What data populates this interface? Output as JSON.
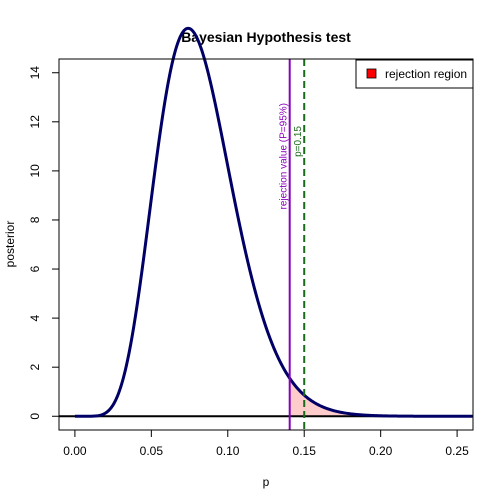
{
  "chart_data": {
    "type": "line",
    "title": "Bayesian Hypothesis test",
    "xlabel": "p",
    "ylabel": "posterior",
    "xlim": [
      -0.0104,
      0.2604
    ],
    "ylim": [
      -0.56,
      14.56
    ],
    "x_ticks": [
      0.0,
      0.05,
      0.1,
      0.15,
      0.2,
      0.25
    ],
    "x_tick_labels": [
      "0.00",
      "0.05",
      "0.10",
      "0.15",
      "0.20",
      "0.25"
    ],
    "y_ticks": [
      0,
      2,
      4,
      6,
      8,
      10,
      12,
      14
    ],
    "y_tick_labels": [
      "0",
      "2",
      "4",
      "6",
      "8",
      "10",
      "12",
      "14"
    ],
    "series": [
      {
        "color": "#000066",
        "distribution": "Beta",
        "alpha": 9,
        "beta": 101,
        "x_range": [
          0.0,
          0.26
        ],
        "peak": {
          "x": 0.074,
          "y": 13.45
        }
      }
    ],
    "vlines": [
      {
        "x": 0.1405,
        "label": "rejection value (P=95%)",
        "color": "#8800bb",
        "style": "solid"
      },
      {
        "x": 0.15,
        "label": "p=0.15",
        "color": "#1a6b1a",
        "style": "dashed"
      }
    ],
    "hline": {
      "y": 0,
      "color": "#000000"
    },
    "shaded_region": {
      "from": 0.1405,
      "to": 0.26,
      "fill": "#ffcccc",
      "edge": "#dd4444",
      "name": "rejection region"
    },
    "legend": {
      "placement": "top-right",
      "entries": [
        {
          "label": "rejection region",
          "swatch": "#ff0000"
        }
      ]
    },
    "grid": false
  }
}
